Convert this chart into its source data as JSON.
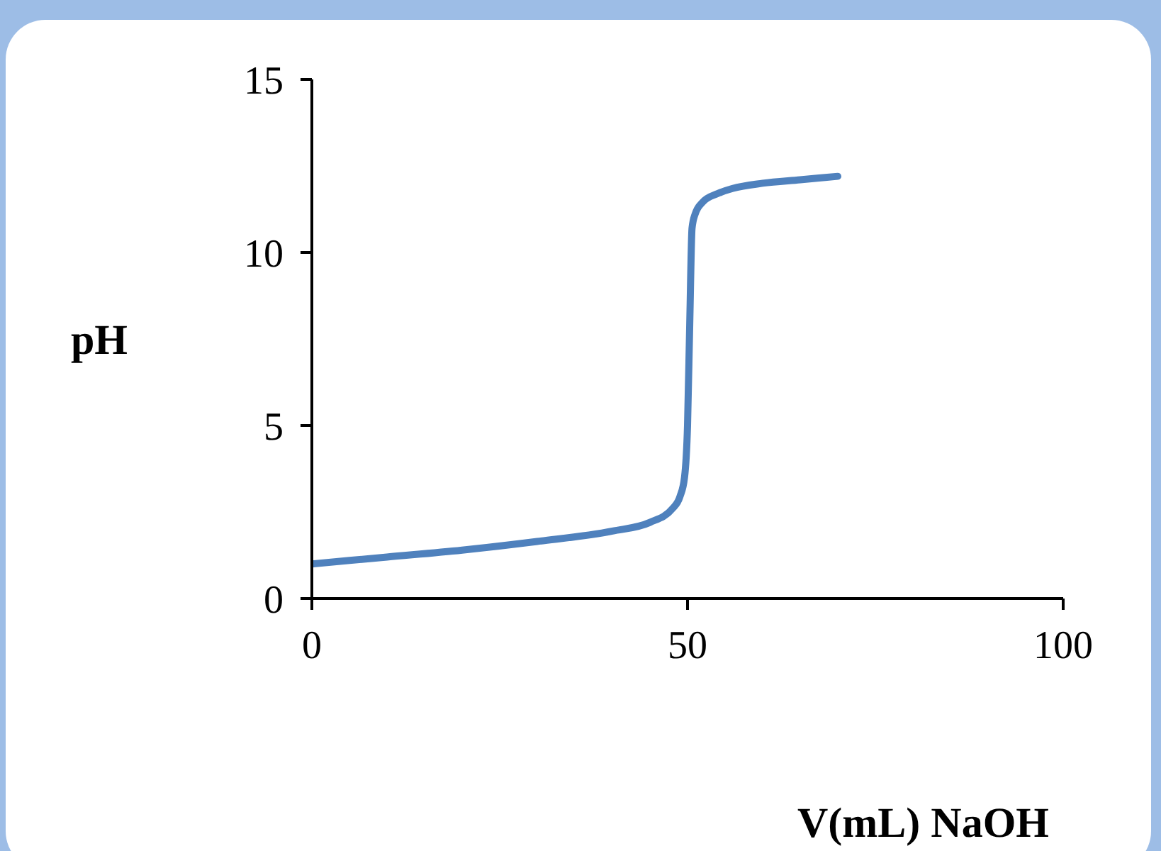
{
  "chart_data": {
    "type": "line",
    "xlabel": "V(mL) NaOH",
    "ylabel": "pH",
    "x": [
      0,
      10,
      20,
      30,
      40,
      45,
      48,
      49,
      49.6,
      50,
      50.3,
      50.6,
      51,
      52,
      54,
      56,
      60,
      65,
      70
    ],
    "series": [
      {
        "color": "#4f81bd",
        "values": [
          1.0,
          1.2,
          1.4,
          1.65,
          1.95,
          2.2,
          2.6,
          2.95,
          3.5,
          5,
          8,
          10.7,
          11.1,
          11.45,
          11.7,
          11.85,
          12.0,
          12.1,
          12.2
        ]
      }
    ],
    "xlim": [
      0,
      100
    ],
    "xticks": [
      0,
      50,
      100
    ],
    "ylim": [
      0,
      15
    ],
    "yticks": [
      0,
      5,
      10,
      15
    ],
    "grid": false,
    "legend": false,
    "marker": "none",
    "line_style": "solid"
  }
}
